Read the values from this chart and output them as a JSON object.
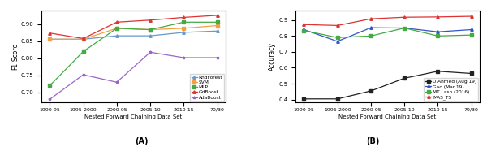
{
  "x_labels": [
    "1990-95",
    "1995-2000",
    "2000-05",
    "2005-10",
    "2010-15",
    "70/30"
  ],
  "x_vals": [
    0,
    1,
    2,
    3,
    4,
    5
  ],
  "plot_A": {
    "title": "(A)",
    "xlabel": "Nested Forward Chaining Data Set",
    "ylabel": "F1-Score",
    "ylim": [
      0.67,
      0.94
    ],
    "yticks": [
      0.7,
      0.75,
      0.8,
      0.85,
      0.9
    ],
    "series": {
      "RndForest": {
        "color": "#6699cc",
        "marker": "^",
        "values": [
          0.856,
          0.856,
          0.866,
          0.866,
          0.876,
          0.88
        ]
      },
      "SVM": {
        "color": "#f5a040",
        "marker": "s",
        "values": [
          0.856,
          0.856,
          0.888,
          0.884,
          0.888,
          0.896
        ]
      },
      "MLP": {
        "color": "#44aa44",
        "marker": "s",
        "values": [
          0.72,
          0.82,
          0.888,
          0.884,
          0.906,
          0.906
        ]
      },
      "GdBoost": {
        "color": "#dd3333",
        "marker": "^",
        "values": [
          0.874,
          0.858,
          0.906,
          0.912,
          0.92,
          0.926
        ]
      },
      "AdaBoost": {
        "color": "#9966cc",
        "marker": "*",
        "values": [
          0.68,
          0.752,
          0.73,
          0.818,
          0.802,
          0.802
        ]
      }
    }
  },
  "plot_B": {
    "title": "(B)",
    "xlabel": "Nested Forward Chaining Data Set",
    "ylabel": "Accuracy",
    "ylim": [
      0.38,
      0.96
    ],
    "yticks": [
      0.4,
      0.5,
      0.6,
      0.7,
      0.8,
      0.9
    ],
    "series": {
      "U.Ahmed (Aug,19)": {
        "color": "#222222",
        "marker": "s",
        "values": [
          0.404,
          0.404,
          0.454,
          0.534,
          0.578,
          0.564
        ]
      },
      "Gao (Mar,19)": {
        "color": "#3355cc",
        "marker": "^",
        "values": [
          0.84,
          0.766,
          0.852,
          0.85,
          0.826,
          0.84
        ]
      },
      "MT Lash (2016)": {
        "color": "#44aa44",
        "marker": "s",
        "values": [
          0.834,
          0.79,
          0.8,
          0.85,
          0.8,
          0.806
        ]
      },
      "MAS_TS": {
        "color": "#dd3333",
        "marker": "^",
        "values": [
          0.872,
          0.866,
          0.908,
          0.918,
          0.92,
          0.924
        ]
      }
    }
  }
}
